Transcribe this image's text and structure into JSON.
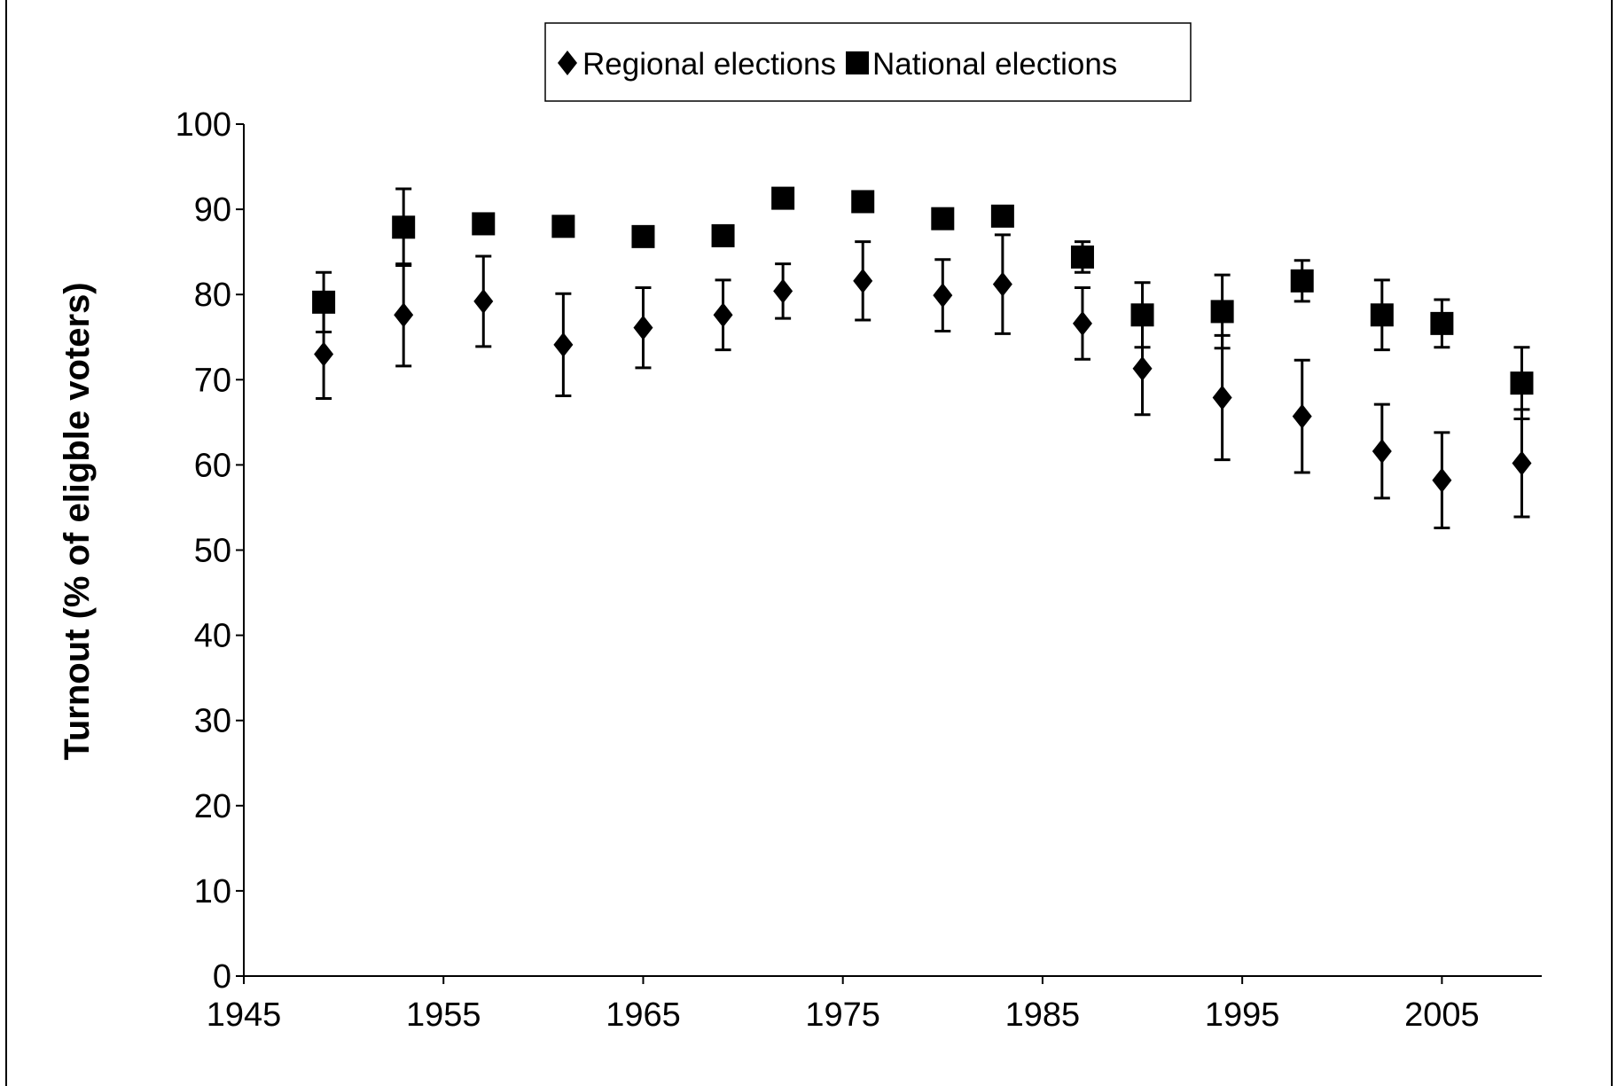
{
  "chart_data": {
    "type": "scatter",
    "ylabel": "Turnout (%  of eligble voters)",
    "xlim": [
      1945,
      2010
    ],
    "xticks": [
      1945,
      1955,
      1965,
      1975,
      1985,
      1995,
      2005
    ],
    "ylim": [
      0,
      100
    ],
    "yticks": [
      0,
      10,
      20,
      30,
      40,
      50,
      60,
      70,
      80,
      90,
      100
    ],
    "grid": false,
    "legend": "top",
    "series": [
      {
        "name": "Regional elections",
        "color": "#000000",
        "marker": "diamond",
        "x": [
          1949,
          1953,
          1957,
          1961,
          1965,
          1969,
          1972,
          1976,
          1980,
          1983,
          1987,
          1990,
          1994,
          1998,
          2002,
          2005,
          2009
        ],
        "values": [
          73.0,
          77.6,
          79.2,
          74.1,
          76.1,
          77.6,
          80.4,
          81.6,
          79.9,
          81.2,
          76.6,
          71.3,
          67.9,
          65.7,
          61.6,
          58.2,
          60.2
        ],
        "errors": [
          5.2,
          6.0,
          5.3,
          6.0,
          4.7,
          4.1,
          3.2,
          4.6,
          4.2,
          5.8,
          4.2,
          5.4,
          7.3,
          6.6,
          5.5,
          5.6,
          6.3
        ]
      },
      {
        "name": "National elections",
        "color": "#000000",
        "marker": "square",
        "x": [
          1949,
          1953,
          1957,
          1961,
          1965,
          1969,
          1972,
          1976,
          1980,
          1983,
          1987,
          1990,
          1994,
          1998,
          2002,
          2005,
          2009
        ],
        "values": [
          79.1,
          87.9,
          88.3,
          88.0,
          86.8,
          86.9,
          91.3,
          90.9,
          88.9,
          89.2,
          84.4,
          77.6,
          78.0,
          81.6,
          77.6,
          76.6,
          69.6
        ],
        "errors": [
          3.5,
          4.5,
          1.0,
          0.8,
          0.5,
          0.5,
          0.5,
          0.5,
          0.5,
          0.5,
          1.8,
          3.8,
          4.3,
          2.4,
          4.1,
          2.8,
          4.2
        ]
      }
    ]
  }
}
